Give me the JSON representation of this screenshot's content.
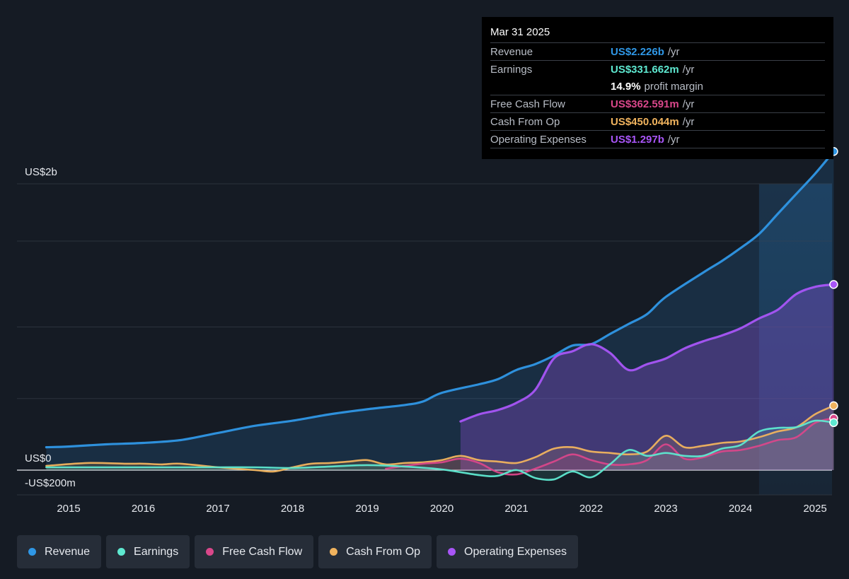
{
  "tooltip": {
    "date": "Mar 31 2025",
    "rows": [
      {
        "label": "Revenue",
        "value": "US$2.226b",
        "unit": "/yr",
        "color": "#2f97e6"
      },
      {
        "label": "Earnings",
        "value": "US$331.662m",
        "unit": "/yr",
        "color": "#5ee8d0"
      },
      {
        "label": "",
        "value": "14.9%",
        "unit": "profit margin",
        "color": "#ffffff"
      },
      {
        "label": "Free Cash Flow",
        "value": "US$362.591m",
        "unit": "/yr",
        "color": "#d9478a"
      },
      {
        "label": "Cash From Op",
        "value": "US$450.044m",
        "unit": "/yr",
        "color": "#f0b35e"
      },
      {
        "label": "Operating Expenses",
        "value": "US$1.297b",
        "unit": "/yr",
        "color": "#a855f7"
      }
    ]
  },
  "legend": [
    {
      "label": "Revenue",
      "color": "#2f97e6"
    },
    {
      "label": "Earnings",
      "color": "#5ee8d0"
    },
    {
      "label": "Free Cash Flow",
      "color": "#d9478a"
    },
    {
      "label": "Cash From Op",
      "color": "#f0b35e"
    },
    {
      "label": "Operating Expenses",
      "color": "#a855f7"
    }
  ],
  "chart_data": {
    "type": "line",
    "y_unit": "US$ millions",
    "y_tick_labels": [
      {
        "value": 2000,
        "label": "US$2b"
      },
      {
        "value": 0,
        "label": "US$0"
      },
      {
        "value": -200,
        "label": "-US$200m"
      }
    ],
    "ylim": [
      -200,
      2400
    ],
    "xlim": [
      2014.7,
      2025.25
    ],
    "x_tick_labels": [
      "2015",
      "2016",
      "2017",
      "2018",
      "2019",
      "2020",
      "2021",
      "2022",
      "2023",
      "2024",
      "2025"
    ],
    "grid": true,
    "legend_position": "bottom",
    "highlight_from": 2024.25,
    "series": [
      {
        "name": "Revenue",
        "color": "#2f97e6",
        "area": true,
        "points": [
          [
            2014.7,
            160
          ],
          [
            2015.0,
            165
          ],
          [
            2015.5,
            180
          ],
          [
            2016.0,
            190
          ],
          [
            2016.5,
            210
          ],
          [
            2017.0,
            260
          ],
          [
            2017.5,
            310
          ],
          [
            2018.0,
            345
          ],
          [
            2018.5,
            390
          ],
          [
            2019.0,
            425
          ],
          [
            2019.5,
            455
          ],
          [
            2019.75,
            480
          ],
          [
            2020.0,
            540
          ],
          [
            2020.5,
            600
          ],
          [
            2020.75,
            635
          ],
          [
            2021.0,
            700
          ],
          [
            2021.25,
            740
          ],
          [
            2021.5,
            800
          ],
          [
            2021.75,
            870
          ],
          [
            2022.0,
            880
          ],
          [
            2022.25,
            950
          ],
          [
            2022.5,
            1020
          ],
          [
            2022.75,
            1090
          ],
          [
            2023.0,
            1210
          ],
          [
            2023.5,
            1380
          ],
          [
            2023.75,
            1460
          ],
          [
            2024.0,
            1550
          ],
          [
            2024.25,
            1650
          ],
          [
            2024.5,
            1790
          ],
          [
            2024.75,
            1930
          ],
          [
            2025.0,
            2070
          ],
          [
            2025.25,
            2226
          ]
        ]
      },
      {
        "name": "Earnings",
        "color": "#5ee8d0",
        "area": true,
        "points": [
          [
            2014.7,
            20
          ],
          [
            2015.5,
            20
          ],
          [
            2016.0,
            20
          ],
          [
            2016.5,
            20
          ],
          [
            2017.0,
            20
          ],
          [
            2017.5,
            20
          ],
          [
            2018.0,
            15
          ],
          [
            2018.5,
            25
          ],
          [
            2019.0,
            35
          ],
          [
            2019.5,
            25
          ],
          [
            2020.0,
            5
          ],
          [
            2020.5,
            -35
          ],
          [
            2020.75,
            -40
          ],
          [
            2021.0,
            0
          ],
          [
            2021.25,
            -55
          ],
          [
            2021.5,
            -65
          ],
          [
            2021.75,
            -10
          ],
          [
            2022.0,
            -50
          ],
          [
            2022.25,
            40
          ],
          [
            2022.5,
            140
          ],
          [
            2022.75,
            100
          ],
          [
            2023.0,
            120
          ],
          [
            2023.25,
            100
          ],
          [
            2023.5,
            100
          ],
          [
            2023.75,
            150
          ],
          [
            2024.0,
            175
          ],
          [
            2024.25,
            270
          ],
          [
            2024.5,
            295
          ],
          [
            2024.75,
            300
          ],
          [
            2025.0,
            345
          ],
          [
            2025.25,
            332
          ]
        ]
      },
      {
        "name": "Free Cash Flow",
        "color": "#d9478a",
        "area": true,
        "points": [
          [
            2019.25,
            10
          ],
          [
            2019.5,
            30
          ],
          [
            2019.75,
            45
          ],
          [
            2020.0,
            55
          ],
          [
            2020.25,
            80
          ],
          [
            2020.5,
            50
          ],
          [
            2020.75,
            -15
          ],
          [
            2021.0,
            -30
          ],
          [
            2021.25,
            10
          ],
          [
            2021.5,
            60
          ],
          [
            2021.75,
            110
          ],
          [
            2022.0,
            70
          ],
          [
            2022.25,
            40
          ],
          [
            2022.5,
            40
          ],
          [
            2022.75,
            70
          ],
          [
            2023.0,
            180
          ],
          [
            2023.25,
            80
          ],
          [
            2023.5,
            90
          ],
          [
            2023.75,
            130
          ],
          [
            2024.0,
            140
          ],
          [
            2024.25,
            170
          ],
          [
            2024.5,
            210
          ],
          [
            2024.75,
            230
          ],
          [
            2025.0,
            330
          ],
          [
            2025.25,
            363
          ]
        ]
      },
      {
        "name": "Cash From Op",
        "color": "#f0b35e",
        "area": true,
        "points": [
          [
            2014.7,
            30
          ],
          [
            2015.25,
            50
          ],
          [
            2015.75,
            45
          ],
          [
            2016.0,
            45
          ],
          [
            2016.25,
            40
          ],
          [
            2016.5,
            45
          ],
          [
            2017.0,
            20
          ],
          [
            2017.5,
            0
          ],
          [
            2017.75,
            -10
          ],
          [
            2018.0,
            20
          ],
          [
            2018.25,
            45
          ],
          [
            2018.5,
            50
          ],
          [
            2018.75,
            60
          ],
          [
            2019.0,
            70
          ],
          [
            2019.25,
            40
          ],
          [
            2019.5,
            50
          ],
          [
            2019.75,
            55
          ],
          [
            2020.0,
            70
          ],
          [
            2020.25,
            100
          ],
          [
            2020.5,
            70
          ],
          [
            2020.75,
            60
          ],
          [
            2021.0,
            50
          ],
          [
            2021.25,
            90
          ],
          [
            2021.5,
            150
          ],
          [
            2021.75,
            160
          ],
          [
            2022.0,
            130
          ],
          [
            2022.25,
            120
          ],
          [
            2022.5,
            110
          ],
          [
            2022.75,
            130
          ],
          [
            2023.0,
            240
          ],
          [
            2023.25,
            160
          ],
          [
            2023.5,
            170
          ],
          [
            2023.75,
            190
          ],
          [
            2024.0,
            200
          ],
          [
            2024.25,
            230
          ],
          [
            2024.5,
            270
          ],
          [
            2024.75,
            300
          ],
          [
            2025.0,
            390
          ],
          [
            2025.25,
            450
          ]
        ]
      },
      {
        "name": "Operating Expenses",
        "color": "#a855f7",
        "area": true,
        "points": [
          [
            2020.25,
            340
          ],
          [
            2020.5,
            390
          ],
          [
            2020.75,
            420
          ],
          [
            2021.0,
            470
          ],
          [
            2021.25,
            560
          ],
          [
            2021.5,
            780
          ],
          [
            2021.75,
            830
          ],
          [
            2022.0,
            880
          ],
          [
            2022.25,
            820
          ],
          [
            2022.5,
            700
          ],
          [
            2022.75,
            740
          ],
          [
            2023.0,
            780
          ],
          [
            2023.25,
            850
          ],
          [
            2023.5,
            900
          ],
          [
            2023.75,
            940
          ],
          [
            2024.0,
            990
          ],
          [
            2024.25,
            1060
          ],
          [
            2024.5,
            1120
          ],
          [
            2024.75,
            1230
          ],
          [
            2025.0,
            1280
          ],
          [
            2025.25,
            1297
          ]
        ]
      }
    ]
  }
}
